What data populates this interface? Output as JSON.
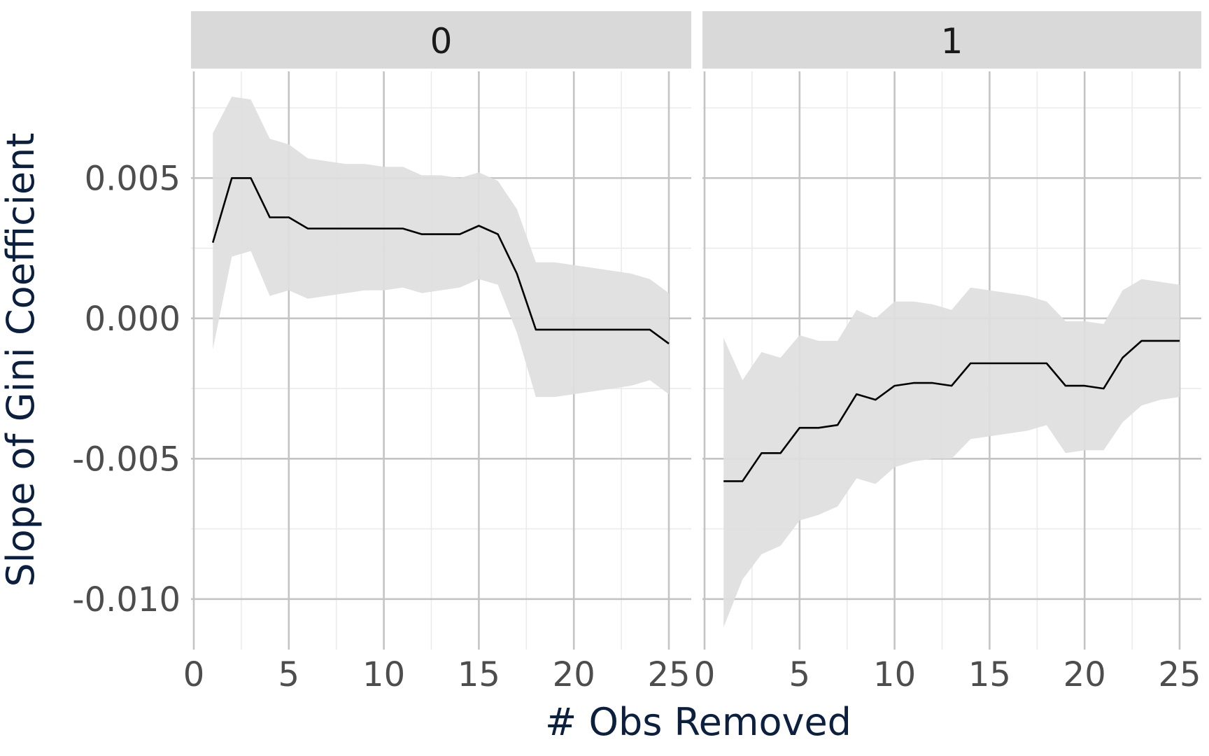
{
  "chart_data": {
    "type": "line",
    "xlabel": "# Obs Removed",
    "ylabel": "Slope of Gini Coefficient",
    "xlim": [
      0,
      25
    ],
    "ylim": [
      -0.0118,
      0.0088
    ],
    "x_ticks": [
      0,
      5,
      10,
      15,
      20,
      25
    ],
    "x_tick_labels": [
      "0",
      "5",
      "10",
      "15",
      "20",
      "25"
    ],
    "y_ticks": [
      -0.01,
      -0.005,
      0.0,
      0.005
    ],
    "y_tick_labels": [
      "-0.010",
      "-0.005",
      "0.000",
      "0.005"
    ],
    "grid": true,
    "band_color": "#dedede",
    "line_color": "#000000",
    "panels": [
      {
        "label": "0",
        "x": [
          1,
          2,
          3,
          4,
          5,
          6,
          7,
          8,
          9,
          10,
          11,
          12,
          13,
          14,
          15,
          16,
          17,
          18,
          19,
          20,
          21,
          22,
          23,
          24,
          25
        ],
        "estimate": [
          0.0027,
          0.005,
          0.005,
          0.0036,
          0.0036,
          0.0032,
          0.0032,
          0.0032,
          0.0032,
          0.0032,
          0.0032,
          0.003,
          0.003,
          0.003,
          0.0033,
          0.003,
          0.0016,
          -0.0004,
          -0.0004,
          -0.0004,
          -0.0004,
          -0.0004,
          -0.0004,
          -0.0004,
          -0.0009
        ],
        "lower": [
          -0.0011,
          0.0022,
          0.0024,
          0.0008,
          0.001,
          0.0007,
          0.0008,
          0.0009,
          0.001,
          0.001,
          0.0011,
          0.0009,
          0.001,
          0.0011,
          0.0014,
          0.0012,
          -0.0005,
          -0.0028,
          -0.0028,
          -0.0027,
          -0.0026,
          -0.0025,
          -0.0024,
          -0.0022,
          -0.0027
        ],
        "upper": [
          0.0066,
          0.0079,
          0.0078,
          0.0064,
          0.0062,
          0.0057,
          0.0056,
          0.0055,
          0.0055,
          0.0054,
          0.0054,
          0.0051,
          0.0051,
          0.005,
          0.0052,
          0.0049,
          0.0039,
          0.002,
          0.002,
          0.0019,
          0.0018,
          0.0017,
          0.0016,
          0.0014,
          0.0009
        ]
      },
      {
        "label": "1",
        "x": [
          1,
          2,
          3,
          4,
          5,
          6,
          7,
          8,
          9,
          10,
          11,
          12,
          13,
          14,
          15,
          16,
          17,
          18,
          19,
          20,
          21,
          22,
          23,
          24,
          25
        ],
        "estimate": [
          -0.0058,
          -0.0058,
          -0.0048,
          -0.0048,
          -0.0039,
          -0.0039,
          -0.0038,
          -0.0027,
          -0.0029,
          -0.0024,
          -0.0023,
          -0.0023,
          -0.0024,
          -0.0016,
          -0.0016,
          -0.0016,
          -0.0016,
          -0.0016,
          -0.0024,
          -0.0024,
          -0.0025,
          -0.0014,
          -0.0008,
          -0.0008,
          -0.0008
        ],
        "lower": [
          -0.011,
          -0.0093,
          -0.0084,
          -0.0081,
          -0.0072,
          -0.007,
          -0.0067,
          -0.0057,
          -0.0059,
          -0.0053,
          -0.0051,
          -0.005,
          -0.005,
          -0.0043,
          -0.0042,
          -0.0041,
          -0.004,
          -0.0038,
          -0.0048,
          -0.0047,
          -0.0047,
          -0.0037,
          -0.0031,
          -0.0029,
          -0.0028
        ]
      }
    ]
  }
}
